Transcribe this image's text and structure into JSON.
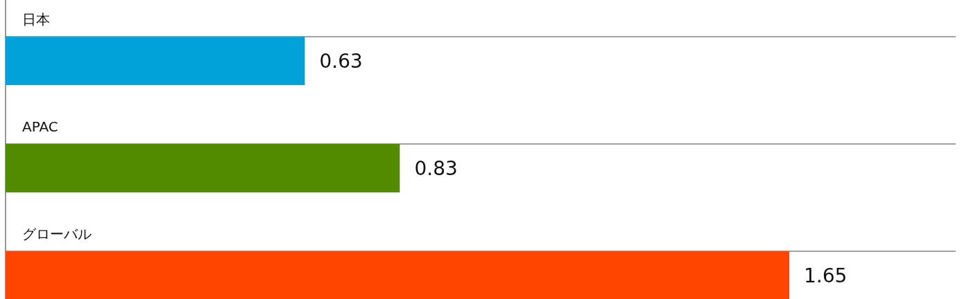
{
  "chart_data": {
    "type": "bar",
    "orientation": "horizontal",
    "categories": [
      "日本",
      "APAC",
      "グローバル"
    ],
    "values": [
      0.63,
      0.83,
      1.65
    ],
    "colors": [
      "#00a3d9",
      "#528a00",
      "#ff4500"
    ],
    "data_labels": true
  }
}
